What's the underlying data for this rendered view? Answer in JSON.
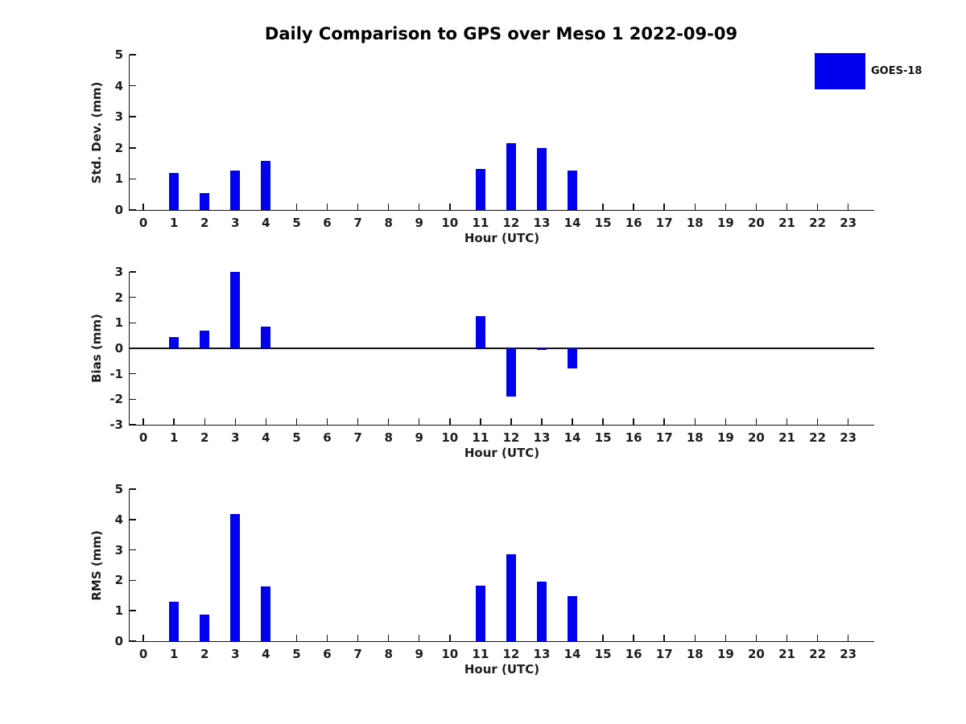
{
  "title": "Daily Comparison to GPS over Meso 1 2022-09-09",
  "legend": {
    "label": "GOES-18",
    "color": "#0000EE",
    "position": "top-right-outside"
  },
  "chart_data": [
    {
      "type": "bar",
      "name": "std-dev-panel",
      "ylabel": "Std. Dev. (mm)",
      "xlabel": "Hour (UTC)",
      "ylim": [
        0,
        5
      ],
      "yticks": [
        0,
        1,
        2,
        3,
        4,
        5
      ],
      "xlim": [
        -0.45,
        23.85
      ],
      "xticks": [
        0,
        1,
        2,
        3,
        4,
        5,
        6,
        7,
        8,
        9,
        10,
        11,
        12,
        13,
        14,
        15,
        16,
        17,
        18,
        19,
        20,
        21,
        22,
        23
      ],
      "grid": false,
      "bar_color": "#0000EE",
      "series": [
        {
          "name": "GOES-18",
          "x": [
            1,
            2,
            3,
            4,
            11,
            12,
            13,
            14
          ],
          "values": [
            1.2,
            0.54,
            1.28,
            1.57,
            1.31,
            2.15,
            1.99,
            1.27
          ]
        }
      ]
    },
    {
      "type": "bar",
      "name": "bias-panel",
      "ylabel": "Bias (mm)",
      "xlabel": "Hour (UTC)",
      "ylim": [
        -3,
        3
      ],
      "yticks": [
        -3,
        -2,
        -1,
        0,
        1,
        2,
        3
      ],
      "xlim": [
        -0.45,
        23.85
      ],
      "xticks": [
        0,
        1,
        2,
        3,
        4,
        5,
        6,
        7,
        8,
        9,
        10,
        11,
        12,
        13,
        14,
        15,
        16,
        17,
        18,
        19,
        20,
        21,
        22,
        23
      ],
      "grid": false,
      "bar_color": "#0000EE",
      "series": [
        {
          "name": "GOES-18",
          "x": [
            1,
            2,
            3,
            4,
            11,
            12,
            13,
            14
          ],
          "values": [
            0.44,
            0.71,
            3.0,
            0.86,
            1.27,
            -1.91,
            -0.06,
            -0.8
          ]
        }
      ]
    },
    {
      "type": "bar",
      "name": "rms-panel",
      "ylabel": "RMS (mm)",
      "xlabel": "Hour (UTC)",
      "ylim": [
        0,
        5
      ],
      "yticks": [
        0,
        1,
        2,
        3,
        4,
        5
      ],
      "xlim": [
        -0.45,
        23.85
      ],
      "xticks": [
        0,
        1,
        2,
        3,
        4,
        5,
        6,
        7,
        8,
        9,
        10,
        11,
        12,
        13,
        14,
        15,
        16,
        17,
        18,
        19,
        20,
        21,
        22,
        23
      ],
      "grid": false,
      "bar_color": "#0000EE",
      "series": [
        {
          "name": "GOES-18",
          "x": [
            1,
            2,
            3,
            4,
            11,
            12,
            13,
            14
          ],
          "values": [
            1.3,
            0.87,
            4.19,
            1.8,
            1.82,
            2.86,
            1.97,
            1.47
          ]
        }
      ]
    }
  ]
}
